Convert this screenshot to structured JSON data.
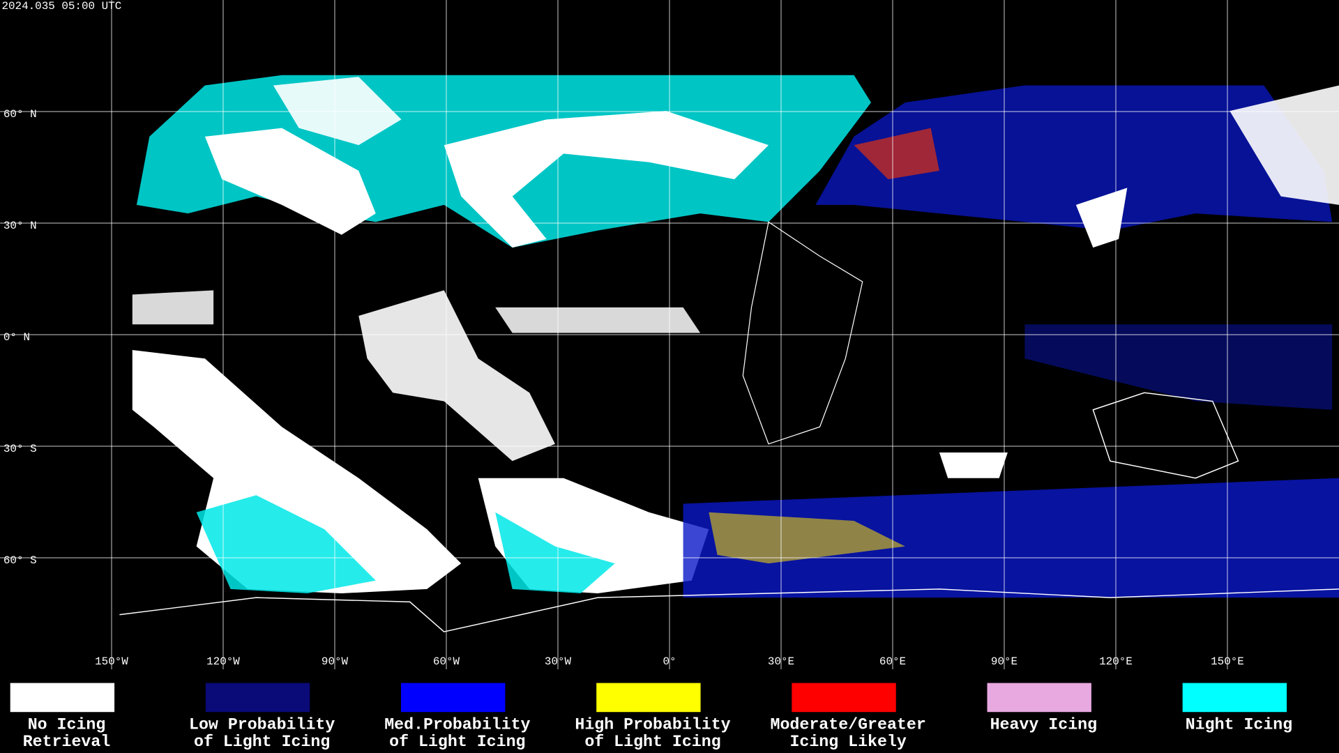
{
  "header": {
    "timestamp": "2024.035 05:00 UTC"
  },
  "map": {
    "lat_labels": [
      "60° N",
      "30° N",
      "0° N",
      "30° S",
      "60° S"
    ],
    "lon_labels": [
      "150°W",
      "120°W",
      "90°W",
      "60°W",
      "30°W",
      "0°",
      "30°E",
      "60°E",
      "90°E",
      "120°E",
      "150°E"
    ]
  },
  "legend": [
    {
      "lines": [
        "No Icing",
        "Retrieval"
      ],
      "color": "#ffffff"
    },
    {
      "lines": [
        "Low Probability",
        "of Light Icing"
      ],
      "color": "#0a0a78"
    },
    {
      "lines": [
        "Med.Probability",
        "of Light Icing"
      ],
      "color": "#0000ff"
    },
    {
      "lines": [
        "High Probability",
        "of Light Icing"
      ],
      "color": "#ffff00"
    },
    {
      "lines": [
        "Moderate/Greater",
        "Icing Likely"
      ],
      "color": "#ff0000"
    },
    {
      "lines": [
        "Heavy Icing"
      ],
      "color": "#e8a8e0"
    },
    {
      "lines": [
        "Night Icing"
      ],
      "color": "#00ffff"
    }
  ]
}
